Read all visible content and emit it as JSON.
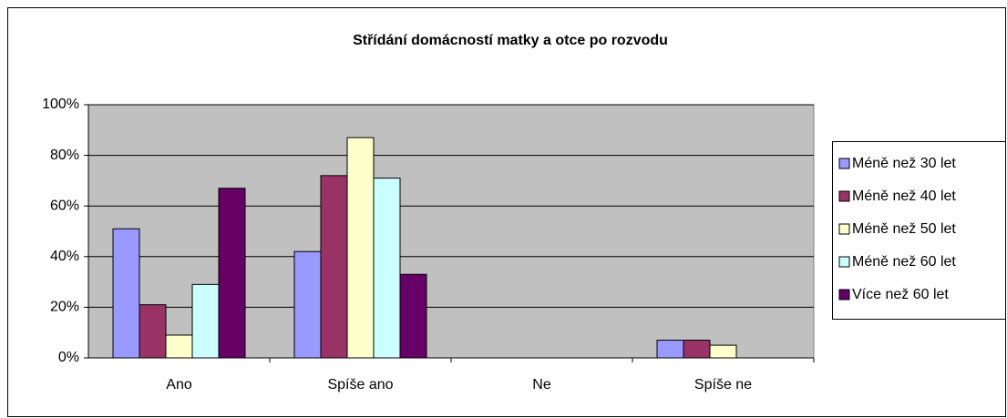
{
  "chart_data": {
    "type": "bar",
    "title": "Střídání domácností matky a otce po rozvodu",
    "categories": [
      "Ano",
      "Spíše ano",
      "Ne",
      "Spíše ne"
    ],
    "series": [
      {
        "name": "Méně než 30 let",
        "color": "#9999ff",
        "values": [
          51,
          42,
          0,
          7
        ]
      },
      {
        "name": "Méně než 40 let",
        "color": "#993366",
        "values": [
          21,
          72,
          0,
          7
        ]
      },
      {
        "name": "Méně než 50 let",
        "color": "#ffffcc",
        "values": [
          9,
          87,
          0,
          5
        ]
      },
      {
        "name": "Méně než 60 let",
        "color": "#ccffff",
        "values": [
          29,
          71,
          0,
          0
        ]
      },
      {
        "name": "Více než 60 let",
        "color": "#660066",
        "values": [
          67,
          33,
          0,
          0
        ]
      }
    ],
    "ylim": [
      0,
      100
    ],
    "yticks": [
      {
        "value": 0,
        "label": "0%"
      },
      {
        "value": 20,
        "label": "20%"
      },
      {
        "value": 40,
        "label": "40%"
      },
      {
        "value": 60,
        "label": "60%"
      },
      {
        "value": 80,
        "label": "80%"
      },
      {
        "value": 100,
        "label": "100%"
      }
    ],
    "grid": true,
    "legend": "right"
  }
}
